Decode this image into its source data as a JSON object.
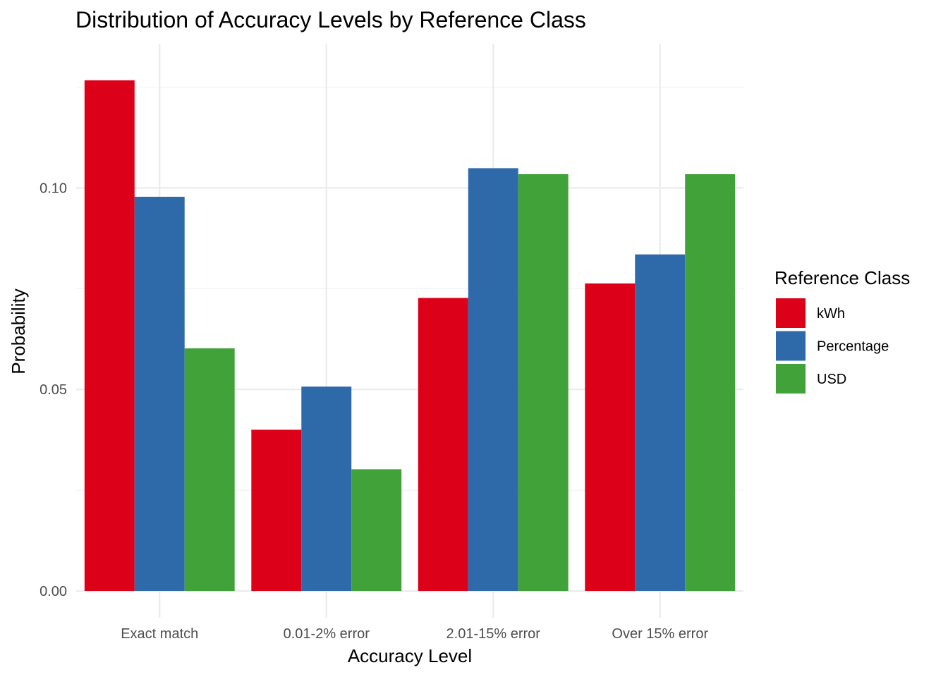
{
  "chart_data": {
    "type": "bar",
    "title": "Distribution of Accuracy Levels by Reference Class",
    "xlabel": "Accuracy Level",
    "ylabel": "Probability",
    "categories": [
      "Exact match",
      "0.01-2% error",
      "2.01-15% error",
      "Over 15% error"
    ],
    "series": [
      {
        "name": "kWh",
        "color": "#dc0019",
        "values": [
          0.1267,
          0.04,
          0.0727,
          0.0763
        ]
      },
      {
        "name": "Percentage",
        "color": "#2e69a9",
        "values": [
          0.0978,
          0.0507,
          0.1049,
          0.0835
        ]
      },
      {
        "name": "USD",
        "color": "#42a23a",
        "values": [
          0.0602,
          0.0302,
          0.1034,
          0.1034
        ]
      }
    ],
    "ylim": [
      0,
      0.1293
    ],
    "yticks": [
      0.0,
      0.05,
      0.1
    ],
    "ytick_labels": [
      "0.00",
      "0.05",
      "0.10"
    ],
    "grid": true,
    "legend": {
      "title": "Reference Class",
      "position": "right"
    }
  }
}
